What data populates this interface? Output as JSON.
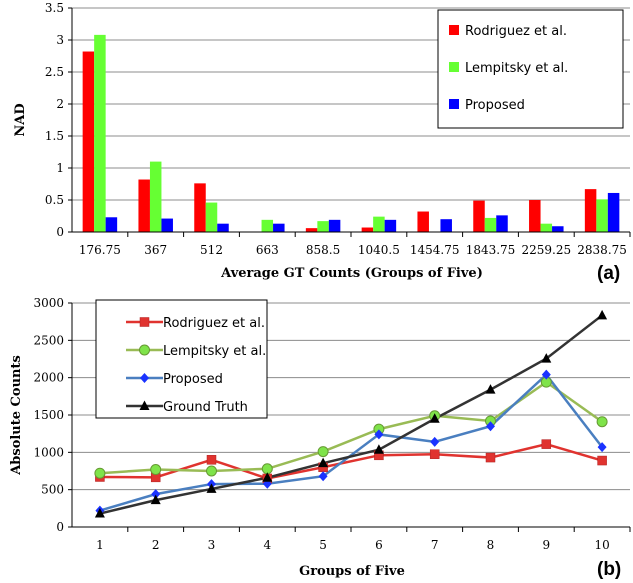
{
  "chart_data": [
    {
      "type": "bar",
      "panel_label": "(a)",
      "ylabel": "NAD",
      "xlabel": "Average GT Counts (Groups of Five)",
      "ylim": [
        0,
        3.5
      ],
      "yticks": [
        "0",
        "0.5",
        "1",
        "1.5",
        "2",
        "2.5",
        "3",
        "3.5"
      ],
      "grid": true,
      "legend_placement": "top-right",
      "categories": [
        "176.75",
        "367",
        "512",
        "663",
        "858.5",
        "1040.5",
        "1454.75",
        "1843.75",
        "2259.25",
        "2838.75"
      ],
      "series": [
        {
          "name": "Rodriguez et al.",
          "color": "#ff0000",
          "values": [
            2.82,
            0.82,
            0.76,
            0.0,
            0.06,
            0.07,
            0.32,
            0.49,
            0.5,
            0.67
          ]
        },
        {
          "name": "Lempitsky et al.",
          "color": "#66ff33",
          "values": [
            3.08,
            1.1,
            0.46,
            0.19,
            0.17,
            0.24,
            0.0,
            0.22,
            0.13,
            0.51
          ]
        },
        {
          "name": "Proposed",
          "color": "#0000ff",
          "values": [
            0.23,
            0.21,
            0.13,
            0.13,
            0.19,
            0.19,
            0.2,
            0.26,
            0.09,
            0.61
          ]
        }
      ]
    },
    {
      "type": "line",
      "panel_label": "(b)",
      "ylabel": "Absolute Counts",
      "xlabel": "Groups of Five",
      "ylim": [
        0,
        3000
      ],
      "yticks": [
        "0",
        "500",
        "1000",
        "1500",
        "2000",
        "2500",
        "3000"
      ],
      "x": [
        "1",
        "2",
        "3",
        "4",
        "5",
        "6",
        "7",
        "8",
        "9",
        "10"
      ],
      "grid": true,
      "legend_placement": "top-left",
      "series": [
        {
          "name": "Rodriguez et al.",
          "color": "#e0332f",
          "marker": "square",
          "values": [
            670,
            665,
            900,
            650,
            800,
            960,
            975,
            930,
            1110,
            890
          ]
        },
        {
          "name": "Lempitsky et al.",
          "color": "#99bb55",
          "marker": "circle",
          "values": [
            720,
            770,
            750,
            780,
            1010,
            1310,
            1490,
            1420,
            1940,
            1410
          ]
        },
        {
          "name": "Proposed",
          "color": "#4a7fc0",
          "marker": "diamond",
          "values": [
            220,
            440,
            575,
            580,
            680,
            1240,
            1140,
            1350,
            2040,
            1070
          ]
        },
        {
          "name": "Ground Truth",
          "color": "#333333",
          "marker": "triangle",
          "values": [
            180,
            360,
            510,
            660,
            855,
            1035,
            1450,
            1840,
            2255,
            2835
          ]
        }
      ]
    }
  ]
}
